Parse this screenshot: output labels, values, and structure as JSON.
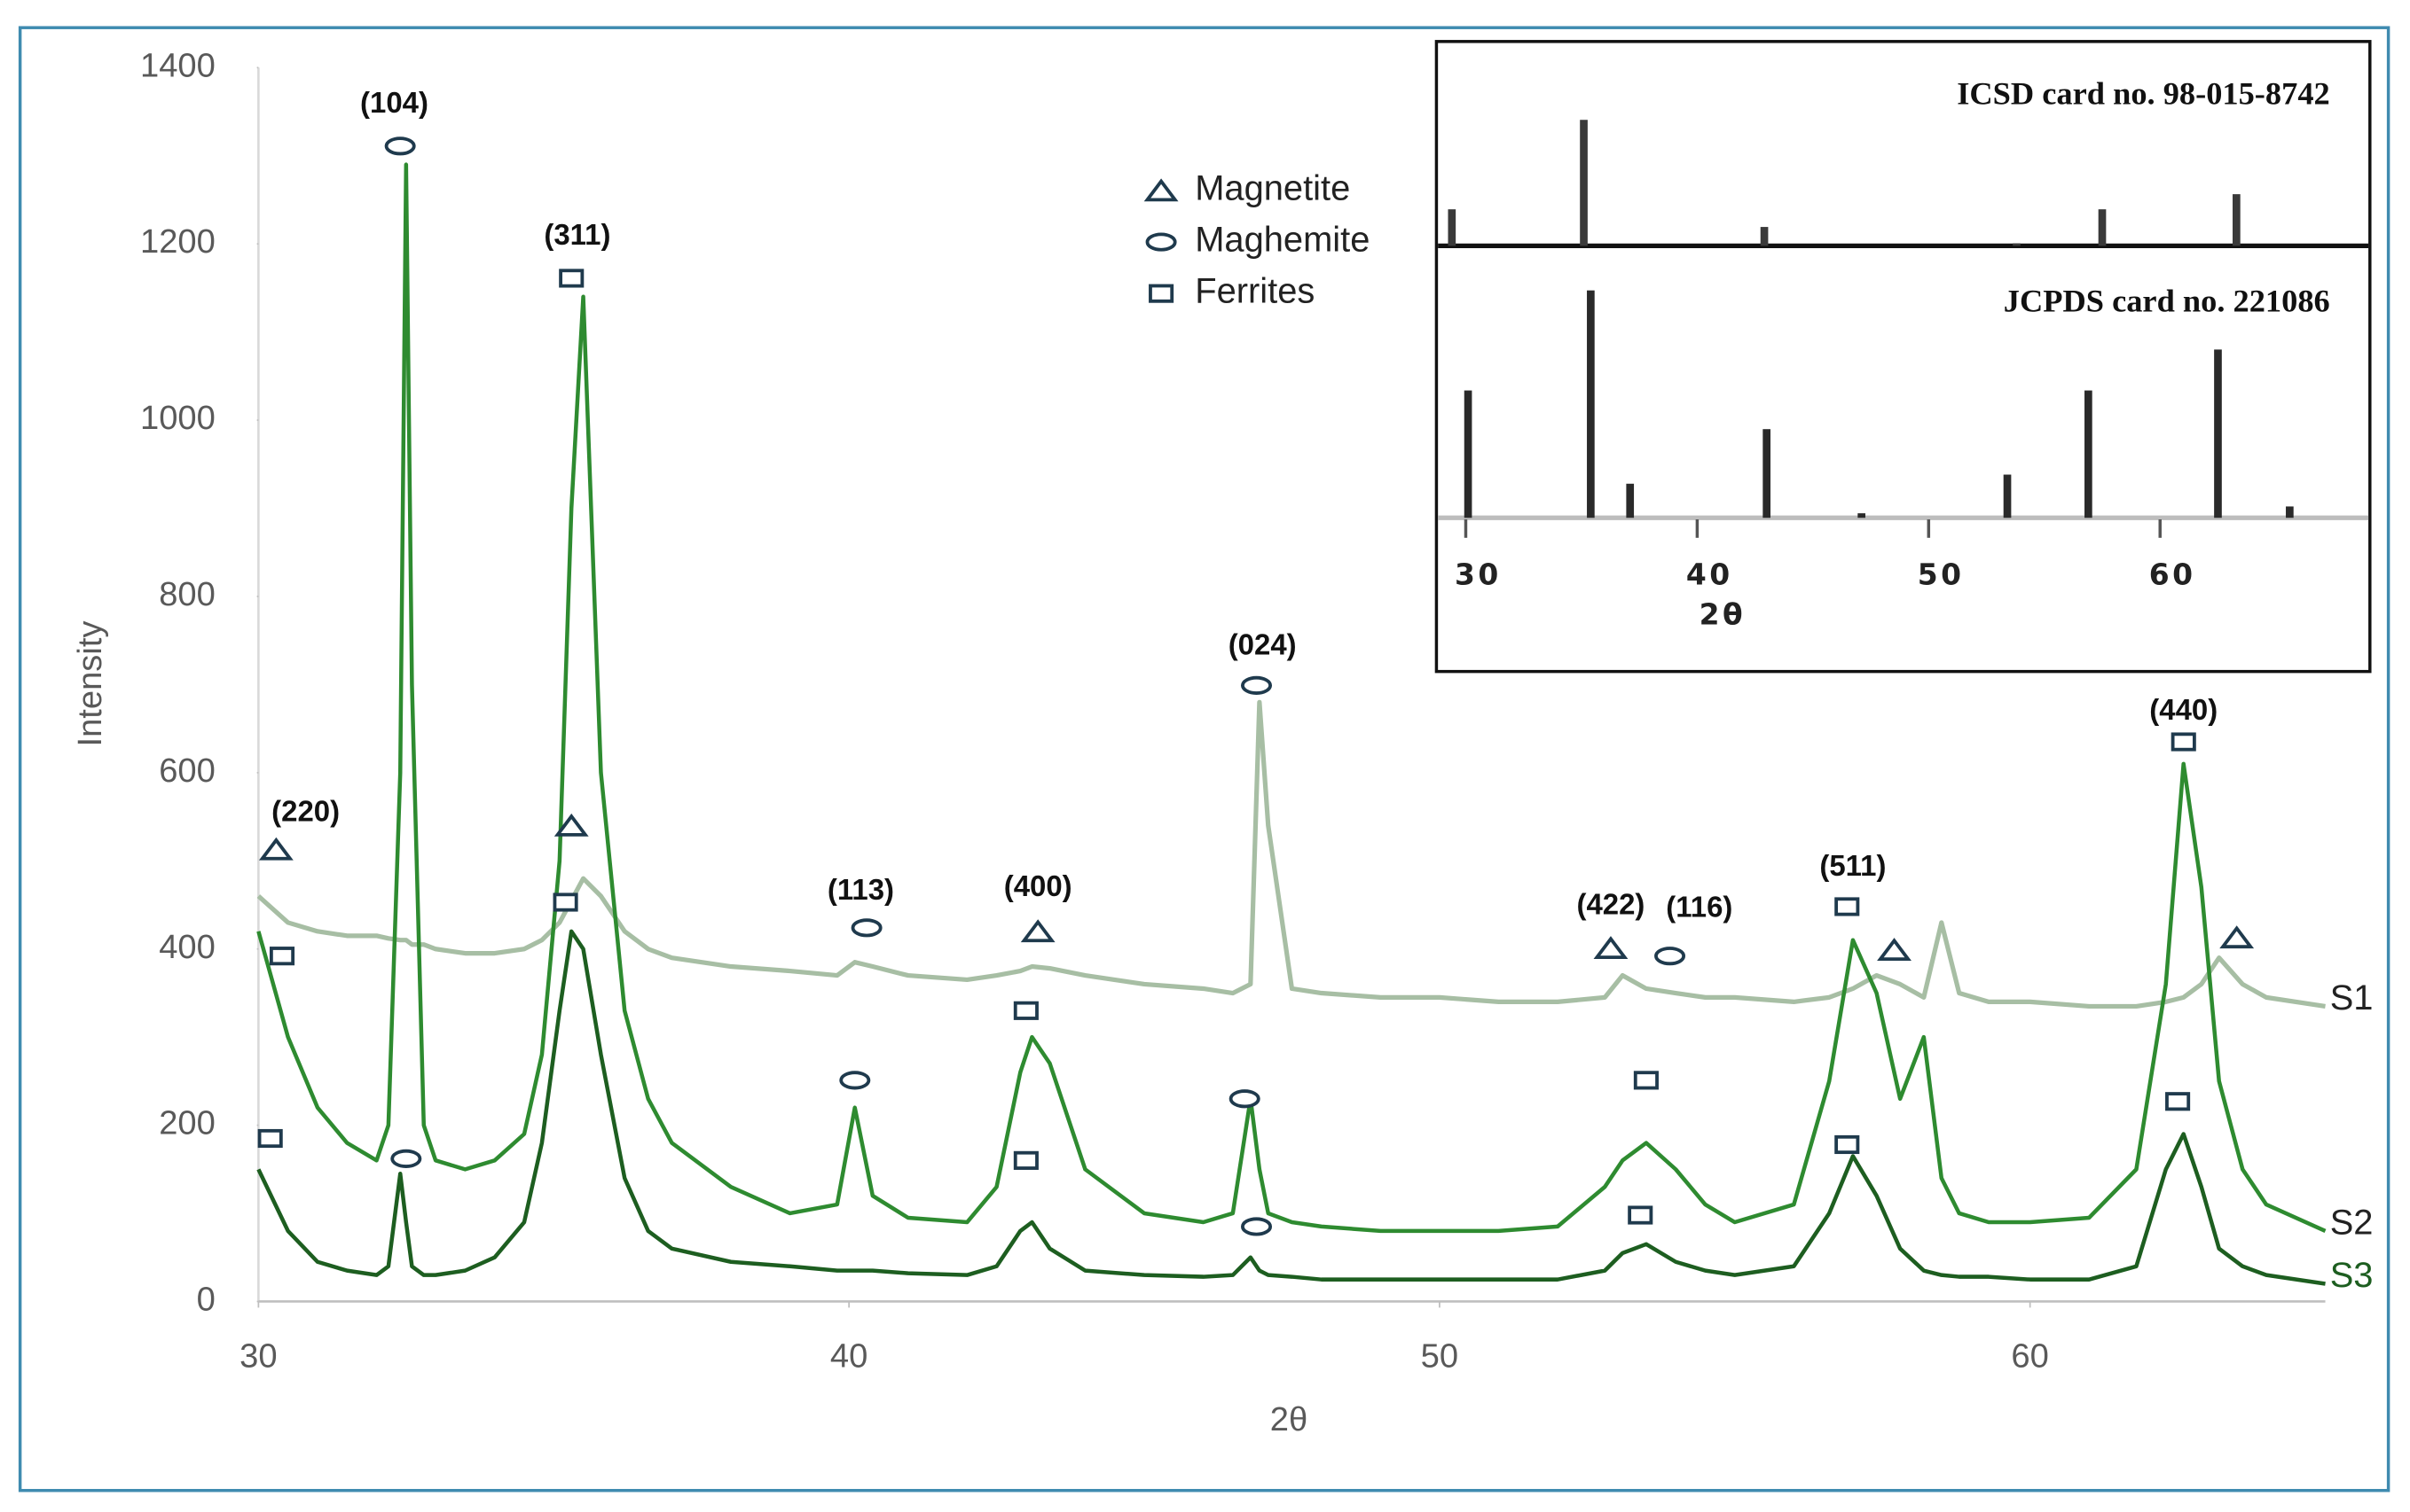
{
  "chart_data": [
    {
      "type": "line",
      "xlabel": "2θ",
      "ylabel": "Intensity",
      "xlim": [
        30,
        65
      ],
      "xticks": [
        30,
        40,
        50,
        60
      ],
      "ylim": [
        0,
        1400
      ],
      "yticks": [
        0,
        200,
        400,
        600,
        800,
        1000,
        1200,
        1400
      ],
      "x": [
        30,
        30.5,
        31,
        31.5,
        32,
        32.2,
        32.4,
        32.5,
        32.6,
        32.8,
        33,
        33.5,
        34,
        34.5,
        34.8,
        35.1,
        35.3,
        35.5,
        35.8,
        36.2,
        36.6,
        37,
        38,
        39,
        39.8,
        40.1,
        40.4,
        41,
        42,
        42.5,
        42.9,
        43.1,
        43.4,
        44,
        45,
        46,
        46.5,
        46.8,
        46.95,
        47.1,
        47.5,
        48,
        49,
        50,
        51,
        52,
        52.8,
        53.1,
        53.5,
        54,
        54.5,
        55,
        56,
        56.6,
        57,
        57.4,
        57.8,
        58.2,
        58.5,
        58.8,
        59.3,
        60,
        61,
        61.8,
        62.3,
        62.6,
        62.9,
        63.2,
        63.6,
        64,
        65
      ],
      "series": [
        {
          "name": "S1",
          "color": "#a7bea4",
          "values": [
            460,
            430,
            420,
            415,
            415,
            412,
            410,
            410,
            405,
            405,
            400,
            395,
            395,
            400,
            410,
            430,
            455,
            480,
            460,
            420,
            400,
            390,
            380,
            375,
            370,
            385,
            380,
            370,
            365,
            370,
            375,
            380,
            378,
            370,
            360,
            355,
            350,
            360,
            680,
            540,
            355,
            350,
            345,
            345,
            340,
            340,
            345,
            370,
            355,
            350,
            345,
            345,
            340,
            345,
            355,
            370,
            360,
            345,
            430,
            350,
            340,
            340,
            335,
            335,
            340,
            345,
            360,
            390,
            360,
            345,
            335
          ]
        },
        {
          "name": "S2",
          "color": "#2e8b30",
          "values": [
            420,
            300,
            220,
            180,
            160,
            200,
            600,
            1290,
            700,
            200,
            160,
            150,
            160,
            190,
            280,
            500,
            900,
            1140,
            600,
            330,
            230,
            180,
            130,
            100,
            110,
            220,
            120,
            95,
            90,
            130,
            260,
            300,
            270,
            150,
            100,
            90,
            100,
            230,
            150,
            100,
            90,
            85,
            80,
            80,
            80,
            85,
            130,
            160,
            180,
            150,
            110,
            90,
            110,
            250,
            410,
            350,
            230,
            300,
            140,
            100,
            90,
            90,
            95,
            150,
            360,
            610,
            470,
            250,
            150,
            110,
            80
          ]
        },
        {
          "name": "S3",
          "color": "#1d5e20",
          "values": [
            150,
            80,
            45,
            35,
            30,
            40,
            145,
            90,
            40,
            30,
            30,
            35,
            50,
            90,
            180,
            330,
            420,
            400,
            280,
            140,
            80,
            60,
            45,
            40,
            35,
            35,
            35,
            32,
            30,
            40,
            80,
            90,
            60,
            35,
            30,
            28,
            30,
            50,
            35,
            30,
            28,
            25,
            25,
            25,
            25,
            25,
            35,
            55,
            65,
            45,
            35,
            30,
            40,
            100,
            165,
            120,
            60,
            35,
            30,
            28,
            28,
            25,
            25,
            40,
            150,
            190,
            130,
            60,
            40,
            30,
            20
          ]
        }
      ],
      "legend": [
        {
          "name": "Magnetite",
          "symbol": "triangle"
        },
        {
          "name": "Maghemite",
          "symbol": "ellipse"
        },
        {
          "name": "Ferrites",
          "symbol": "square"
        }
      ],
      "markers": [
        {
          "symbol": "triangle",
          "x": 30.3,
          "y": 513
        },
        {
          "symbol": "triangle",
          "x": 35.3,
          "y": 540
        },
        {
          "symbol": "triangle",
          "x": 43.2,
          "y": 420
        },
        {
          "symbol": "triangle",
          "x": 52.9,
          "y": 401
        },
        {
          "symbol": "triangle",
          "x": 57.7,
          "y": 399
        },
        {
          "symbol": "triangle",
          "x": 63.5,
          "y": 413
        },
        {
          "symbol": "ellipse",
          "x": 32.4,
          "y": 1311
        },
        {
          "symbol": "ellipse",
          "x": 40.3,
          "y": 424
        },
        {
          "symbol": "ellipse",
          "x": 46.9,
          "y": 699
        },
        {
          "symbol": "ellipse",
          "x": 53.9,
          "y": 392
        },
        {
          "symbol": "ellipse",
          "x": 40.1,
          "y": 251
        },
        {
          "symbol": "ellipse",
          "x": 32.5,
          "y": 162
        },
        {
          "symbol": "ellipse",
          "x": 46.7,
          "y": 230
        },
        {
          "symbol": "ellipse",
          "x": 46.9,
          "y": 85
        },
        {
          "symbol": "square",
          "x": 35.3,
          "y": 1161
        },
        {
          "symbol": "square",
          "x": 30.4,
          "y": 392
        },
        {
          "symbol": "square",
          "x": 35.2,
          "y": 453
        },
        {
          "symbol": "square",
          "x": 30.2,
          "y": 185
        },
        {
          "symbol": "square",
          "x": 43.0,
          "y": 330
        },
        {
          "symbol": "square",
          "x": 43.0,
          "y": 160
        },
        {
          "symbol": "square",
          "x": 53.5,
          "y": 251
        },
        {
          "symbol": "square",
          "x": 53.4,
          "y": 98
        },
        {
          "symbol": "square",
          "x": 56.9,
          "y": 448
        },
        {
          "symbol": "square",
          "x": 56.9,
          "y": 178
        },
        {
          "symbol": "square",
          "x": 62.6,
          "y": 635
        },
        {
          "symbol": "square",
          "x": 62.5,
          "y": 227
        }
      ],
      "annotations": [
        {
          "text": "(104)",
          "x": 32.3,
          "y": 1358
        },
        {
          "text": "(311)",
          "x": 35.4,
          "y": 1208
        },
        {
          "text": "(220)",
          "x": 30.8,
          "y": 554
        },
        {
          "text": "(113)",
          "x": 40.2,
          "y": 465
        },
        {
          "text": "(400)",
          "x": 43.2,
          "y": 469
        },
        {
          "text": "(024)",
          "x": 47.0,
          "y": 743
        },
        {
          "text": "(422)",
          "x": 52.9,
          "y": 448
        },
        {
          "text": "(116)",
          "x": 54.4,
          "y": 445
        },
        {
          "text": "(511)",
          "x": 57.0,
          "y": 492
        },
        {
          "text": "(440)",
          "x": 62.6,
          "y": 669
        }
      ]
    },
    {
      "type": "stick",
      "xlabel": "2θ",
      "xlim": [
        28.8,
        69
      ],
      "xticks": [
        30,
        40,
        50,
        60
      ],
      "ylim": [
        0,
        100
      ],
      "series": [
        {
          "name": "ICSD card no. 98-015-8742",
          "color": "#3a3a3a",
          "x": [
            29.4,
            35.1,
            42.9,
            53.8,
            57.5,
            63.3
          ],
          "values": [
            29,
            100,
            15,
            2,
            29,
            41
          ]
        },
        {
          "name": "JCPDS card no. 221086",
          "color": "#2a2a2a",
          "x": [
            30.1,
            35.4,
            37.1,
            43.0,
            47.1,
            53.4,
            56.9,
            62.5,
            65.6
          ],
          "values": [
            56,
            100,
            15,
            39,
            2,
            19,
            56,
            74,
            5
          ]
        }
      ]
    }
  ]
}
